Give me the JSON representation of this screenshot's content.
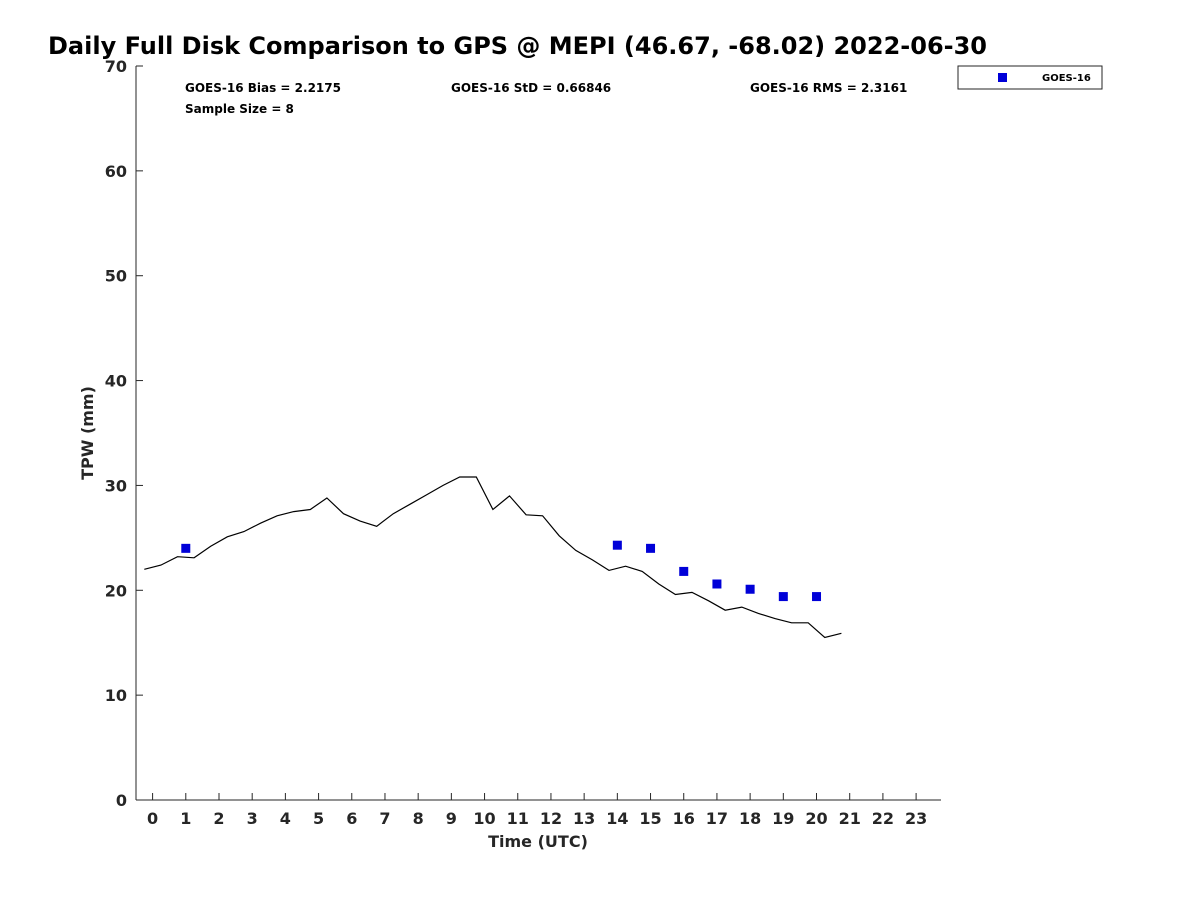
{
  "chart_data": {
    "type": "line",
    "title": "Daily Full Disk Comparison to GPS @ MEPI (46.67, -68.02) 2022-06-30",
    "xlabel": "Time (UTC)",
    "ylabel": "TPW (mm)",
    "xlim": [
      -0.5,
      23.75
    ],
    "ylim": [
      0,
      70
    ],
    "x_ticks": [
      0,
      1,
      2,
      3,
      4,
      5,
      6,
      7,
      8,
      9,
      10,
      11,
      12,
      13,
      14,
      15,
      16,
      17,
      18,
      19,
      20,
      21,
      22,
      23
    ],
    "x_tick_labels": [
      "0",
      "1",
      "2",
      "3",
      "4",
      "5",
      "6",
      "7",
      "8",
      "9",
      "10",
      "11",
      "12",
      "13",
      "14",
      "15",
      "16",
      "17",
      "18",
      "19",
      "20",
      "21",
      "22",
      "23"
    ],
    "y_ticks": [
      0,
      10,
      20,
      30,
      40,
      50,
      60,
      70
    ],
    "y_tick_labels": [
      "0",
      "10",
      "20",
      "30",
      "40",
      "50",
      "60",
      "70"
    ],
    "grid": false,
    "legend_position": "top-right",
    "stats": {
      "bias": "GOES-16 Bias = 2.2175",
      "std": "GOES-16 StD = 0.66846",
      "rms": "GOES-16 RMS = 2.3161",
      "sample_size": "Sample Size = 8"
    },
    "series": [
      {
        "kind": "line",
        "color": "#000000",
        "points": [
          [
            -0.25,
            22.0
          ],
          [
            0.25,
            22.4
          ],
          [
            0.75,
            23.2
          ],
          [
            1.25,
            23.1
          ],
          [
            1.75,
            24.2
          ],
          [
            2.25,
            25.1
          ],
          [
            2.75,
            25.6
          ],
          [
            3.25,
            26.4
          ],
          [
            3.75,
            27.1
          ],
          [
            4.25,
            27.5
          ],
          [
            4.75,
            27.7
          ],
          [
            5.25,
            28.8
          ],
          [
            5.75,
            27.3
          ],
          [
            6.25,
            26.6
          ],
          [
            6.75,
            26.1
          ],
          [
            7.25,
            27.3
          ],
          [
            7.75,
            28.2
          ],
          [
            8.25,
            29.1
          ],
          [
            8.75,
            30.0
          ],
          [
            9.25,
            30.8
          ],
          [
            9.75,
            30.8
          ],
          [
            10.25,
            27.7
          ],
          [
            10.75,
            29.0
          ],
          [
            11.25,
            27.2
          ],
          [
            11.75,
            27.1
          ],
          [
            12.25,
            25.2
          ],
          [
            12.75,
            23.8
          ],
          [
            13.25,
            22.9
          ],
          [
            13.75,
            21.9
          ],
          [
            14.25,
            22.3
          ],
          [
            14.75,
            21.8
          ],
          [
            15.25,
            20.6
          ],
          [
            15.75,
            19.6
          ],
          [
            16.25,
            19.8
          ],
          [
            16.75,
            19.0
          ],
          [
            17.25,
            18.1
          ],
          [
            17.75,
            18.4
          ],
          [
            18.25,
            17.8
          ],
          [
            18.75,
            17.3
          ],
          [
            19.25,
            16.9
          ],
          [
            19.75,
            16.9
          ],
          [
            20.25,
            15.5
          ],
          [
            20.75,
            15.9
          ]
        ]
      },
      {
        "name": "GOES-16",
        "kind": "scatter",
        "color": "#0000d8",
        "points": [
          [
            1,
            24.0
          ],
          [
            14,
            24.3
          ],
          [
            15,
            24.0
          ],
          [
            16,
            21.8
          ],
          [
            17,
            20.6
          ],
          [
            18,
            20.1
          ],
          [
            19,
            19.4
          ],
          [
            20,
            19.4
          ]
        ]
      }
    ]
  }
}
